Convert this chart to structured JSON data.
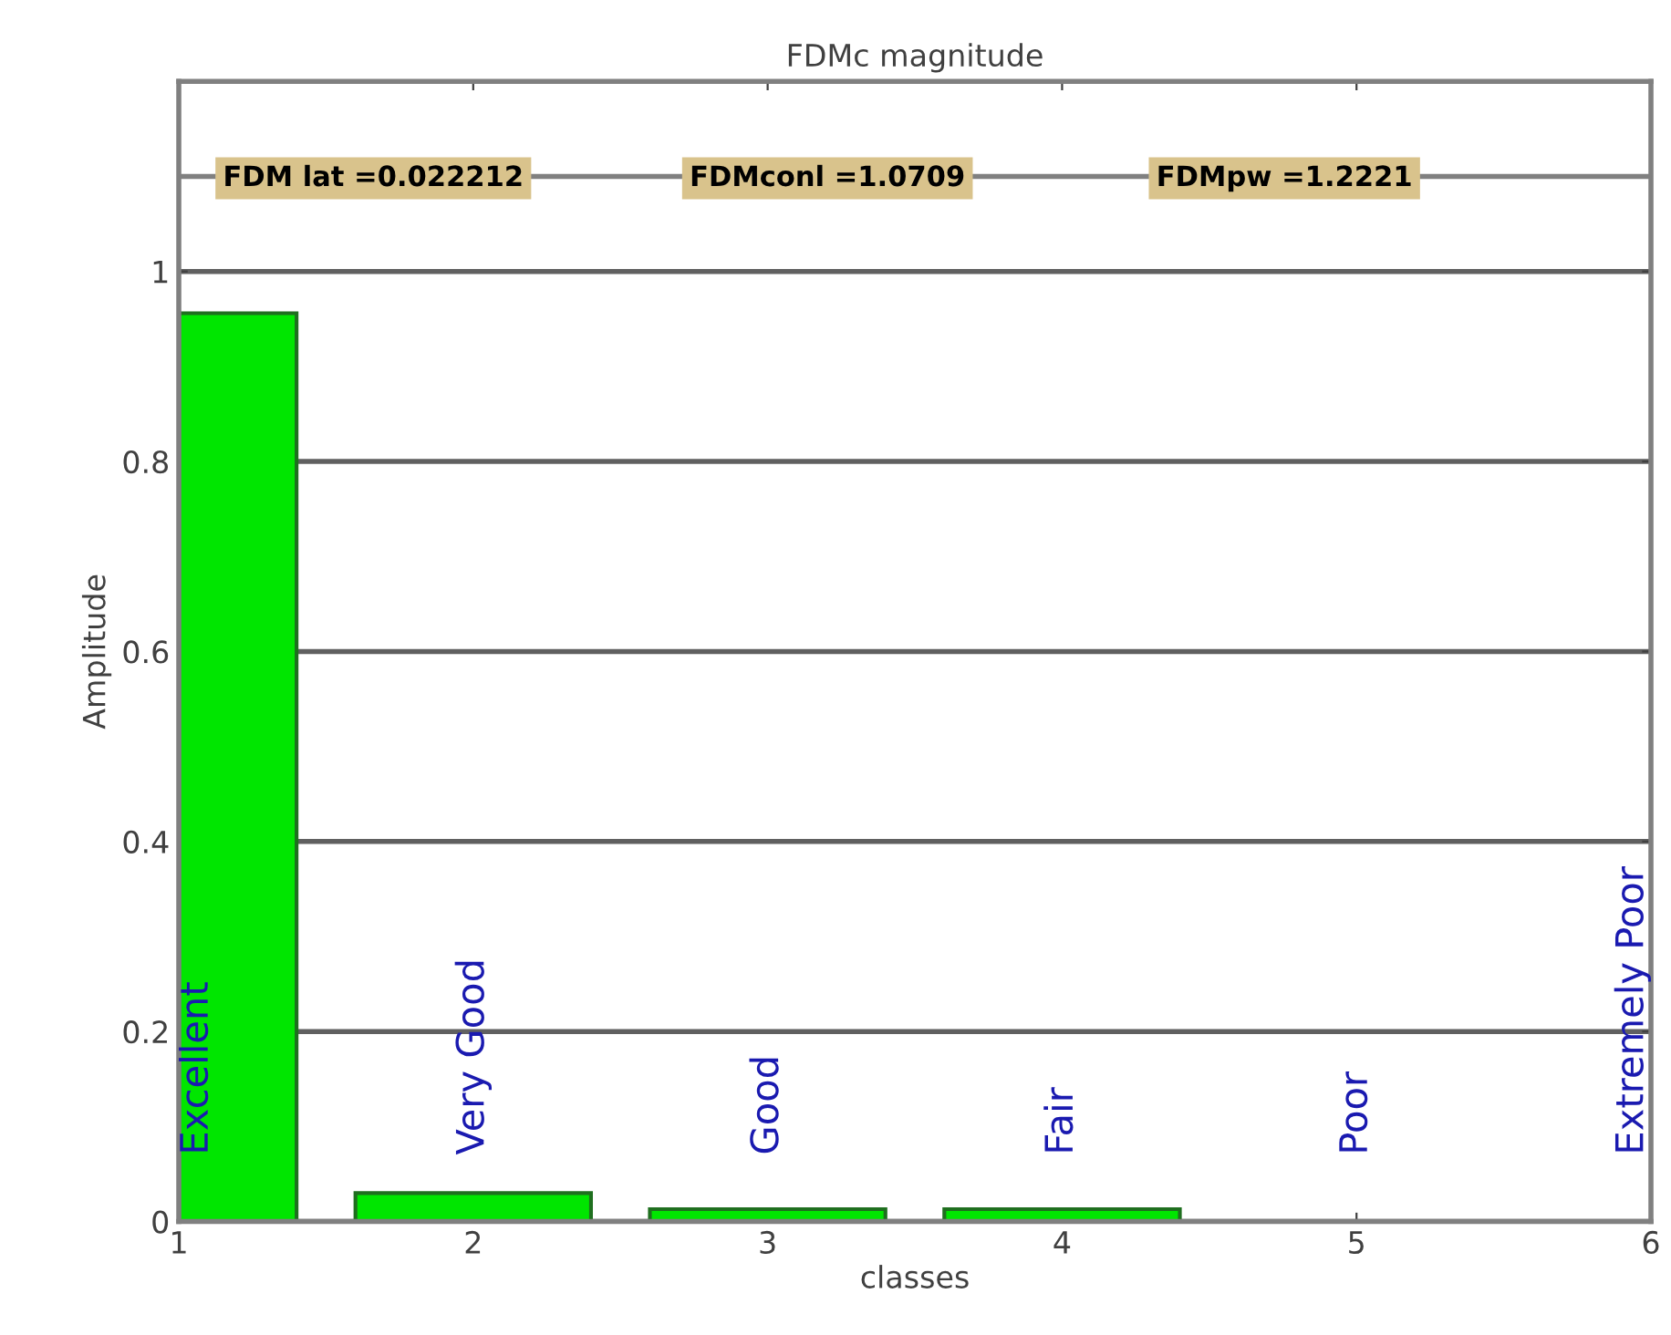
{
  "chart_data": {
    "type": "bar",
    "title": "FDMc magnitude",
    "xlabel": "classes",
    "ylabel": "Amplitude",
    "x": [
      1,
      2,
      3,
      4,
      5,
      6
    ],
    "series": [
      {
        "color": "#00e600",
        "values": [
          0.956,
          0.03,
          0.013,
          0.013,
          0,
          0
        ]
      }
    ],
    "xlim": [
      1,
      6
    ],
    "ylim": [
      0,
      1.2
    ],
    "xticks": [
      1,
      2,
      3,
      4,
      5,
      6
    ],
    "yticks": [
      0,
      0.2,
      0.4,
      0.6,
      0.8,
      1
    ],
    "grid": "y",
    "ref_lines": [
      {
        "axis": "y",
        "value": 1.1,
        "color": "#808080"
      }
    ],
    "annotations": [
      "FDM lat =0.022212",
      "FDMconl =1.0709",
      "FDMpw =1.2221",
      "Excellent",
      "Very Good",
      "Good",
      "Fair",
      "Poor",
      "Extremely Poor"
    ]
  }
}
